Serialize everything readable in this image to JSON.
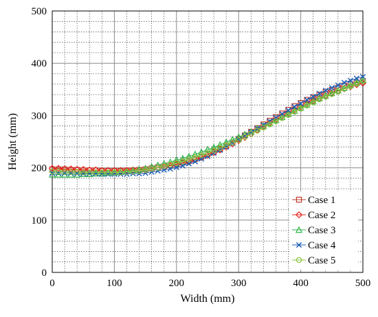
{
  "chart_data": {
    "type": "line",
    "title": "",
    "xlabel": "Width (mm)",
    "ylabel": "Height (mm)",
    "xlim": [
      0,
      500
    ],
    "ylim": [
      0,
      500
    ],
    "x_ticks": [
      "0",
      "100",
      "200",
      "300",
      "400",
      "500"
    ],
    "y_ticks": [
      "0",
      "100",
      "200",
      "300",
      "400",
      "500"
    ],
    "grid": true,
    "legend_position": "bottom-right",
    "series": [
      {
        "name": "Case 1",
        "color": "#c0392b",
        "marker": "square",
        "points": [
          [
            0,
            197
          ],
          [
            10,
            197
          ],
          [
            20,
            197
          ],
          [
            30,
            196
          ],
          [
            40,
            196
          ],
          [
            50,
            195
          ],
          [
            60,
            195
          ],
          [
            70,
            195
          ],
          [
            80,
            194
          ],
          [
            90,
            194
          ],
          [
            100,
            194
          ],
          [
            110,
            194
          ],
          [
            120,
            195
          ],
          [
            130,
            195
          ],
          [
            140,
            196
          ],
          [
            150,
            197
          ],
          [
            160,
            199
          ],
          [
            170,
            201
          ],
          [
            180,
            203
          ],
          [
            190,
            205
          ],
          [
            200,
            207
          ],
          [
            210,
            210
          ],
          [
            220,
            213
          ],
          [
            230,
            217
          ],
          [
            240,
            221
          ],
          [
            250,
            226
          ],
          [
            260,
            231
          ],
          [
            270,
            236
          ],
          [
            280,
            242
          ],
          [
            290,
            248
          ],
          [
            300,
            255
          ],
          [
            310,
            262
          ],
          [
            320,
            269
          ],
          [
            330,
            276
          ],
          [
            340,
            283
          ],
          [
            350,
            290
          ],
          [
            360,
            297
          ],
          [
            370,
            304
          ],
          [
            380,
            311
          ],
          [
            390,
            318
          ],
          [
            400,
            324
          ],
          [
            410,
            330
          ],
          [
            420,
            335
          ],
          [
            430,
            340
          ],
          [
            440,
            345
          ],
          [
            450,
            349
          ],
          [
            460,
            353
          ],
          [
            470,
            357
          ],
          [
            480,
            360
          ],
          [
            490,
            363
          ],
          [
            500,
            366
          ]
        ]
      },
      {
        "name": "Case 2",
        "color": "#e8231b",
        "marker": "diamond",
        "points": [
          [
            0,
            199
          ],
          [
            10,
            199
          ],
          [
            20,
            198
          ],
          [
            30,
            198
          ],
          [
            40,
            197
          ],
          [
            50,
            197
          ],
          [
            60,
            196
          ],
          [
            70,
            196
          ],
          [
            80,
            195
          ],
          [
            90,
            195
          ],
          [
            100,
            195
          ],
          [
            110,
            195
          ],
          [
            120,
            195
          ],
          [
            130,
            196
          ],
          [
            140,
            196
          ],
          [
            150,
            197
          ],
          [
            160,
            198
          ],
          [
            170,
            200
          ],
          [
            180,
            202
          ],
          [
            190,
            204
          ],
          [
            200,
            206
          ],
          [
            210,
            209
          ],
          [
            220,
            212
          ],
          [
            230,
            216
          ],
          [
            240,
            220
          ],
          [
            250,
            224
          ],
          [
            260,
            229
          ],
          [
            270,
            234
          ],
          [
            280,
            240
          ],
          [
            290,
            246
          ],
          [
            300,
            252
          ],
          [
            310,
            258
          ],
          [
            320,
            265
          ],
          [
            330,
            272
          ],
          [
            340,
            279
          ],
          [
            350,
            286
          ],
          [
            360,
            292
          ],
          [
            370,
            299
          ],
          [
            380,
            305
          ],
          [
            390,
            311
          ],
          [
            400,
            317
          ],
          [
            410,
            323
          ],
          [
            420,
            328
          ],
          [
            430,
            333
          ],
          [
            440,
            338
          ],
          [
            450,
            343
          ],
          [
            460,
            347
          ],
          [
            470,
            351
          ],
          [
            480,
            355
          ],
          [
            490,
            359
          ],
          [
            500,
            362
          ]
        ]
      },
      {
        "name": "Case 3",
        "color": "#2db34a",
        "marker": "triangle",
        "points": [
          [
            0,
            187
          ],
          [
            10,
            187
          ],
          [
            20,
            187
          ],
          [
            30,
            187
          ],
          [
            40,
            187
          ],
          [
            50,
            188
          ],
          [
            60,
            188
          ],
          [
            70,
            189
          ],
          [
            80,
            189
          ],
          [
            90,
            190
          ],
          [
            100,
            191
          ],
          [
            110,
            192
          ],
          [
            120,
            193
          ],
          [
            130,
            195
          ],
          [
            140,
            197
          ],
          [
            150,
            199
          ],
          [
            160,
            202
          ],
          [
            170,
            205
          ],
          [
            180,
            208
          ],
          [
            190,
            211
          ],
          [
            200,
            215
          ],
          [
            210,
            218
          ],
          [
            220,
            222
          ],
          [
            230,
            226
          ],
          [
            240,
            230
          ],
          [
            250,
            235
          ],
          [
            260,
            239
          ],
          [
            270,
            244
          ],
          [
            280,
            249
          ],
          [
            290,
            254
          ],
          [
            300,
            259
          ],
          [
            310,
            264
          ],
          [
            320,
            269
          ],
          [
            330,
            275
          ],
          [
            340,
            280
          ],
          [
            350,
            285
          ],
          [
            360,
            291
          ],
          [
            370,
            297
          ],
          [
            380,
            303
          ],
          [
            390,
            309
          ],
          [
            400,
            315
          ],
          [
            410,
            321
          ],
          [
            420,
            327
          ],
          [
            430,
            333
          ],
          [
            440,
            338
          ],
          [
            450,
            343
          ],
          [
            460,
            348
          ],
          [
            470,
            353
          ],
          [
            480,
            358
          ],
          [
            490,
            363
          ],
          [
            500,
            368
          ]
        ]
      },
      {
        "name": "Case 4",
        "color": "#1f5fb4",
        "marker": "x",
        "points": [
          [
            0,
            190
          ],
          [
            10,
            190
          ],
          [
            20,
            190
          ],
          [
            30,
            190
          ],
          [
            40,
            189
          ],
          [
            50,
            189
          ],
          [
            60,
            189
          ],
          [
            70,
            189
          ],
          [
            80,
            188
          ],
          [
            90,
            188
          ],
          [
            100,
            188
          ],
          [
            110,
            188
          ],
          [
            120,
            188
          ],
          [
            130,
            189
          ],
          [
            140,
            189
          ],
          [
            150,
            190
          ],
          [
            160,
            192
          ],
          [
            170,
            194
          ],
          [
            180,
            196
          ],
          [
            190,
            198
          ],
          [
            200,
            201
          ],
          [
            210,
            204
          ],
          [
            220,
            208
          ],
          [
            230,
            212
          ],
          [
            240,
            217
          ],
          [
            250,
            222
          ],
          [
            260,
            228
          ],
          [
            270,
            234
          ],
          [
            280,
            240
          ],
          [
            290,
            247
          ],
          [
            300,
            254
          ],
          [
            310,
            261
          ],
          [
            320,
            268
          ],
          [
            330,
            275
          ],
          [
            340,
            282
          ],
          [
            350,
            289
          ],
          [
            360,
            296
          ],
          [
            370,
            303
          ],
          [
            380,
            310
          ],
          [
            390,
            317
          ],
          [
            400,
            323
          ],
          [
            410,
            330
          ],
          [
            420,
            336
          ],
          [
            430,
            342
          ],
          [
            440,
            348
          ],
          [
            450,
            353
          ],
          [
            460,
            358
          ],
          [
            470,
            363
          ],
          [
            480,
            367
          ],
          [
            490,
            371
          ],
          [
            500,
            374
          ]
        ]
      },
      {
        "name": "Case 5",
        "color": "#8cc63f",
        "marker": "circle",
        "points": [
          [
            0,
            193
          ],
          [
            10,
            193
          ],
          [
            20,
            192
          ],
          [
            30,
            192
          ],
          [
            40,
            192
          ],
          [
            50,
            191
          ],
          [
            60,
            191
          ],
          [
            70,
            191
          ],
          [
            80,
            191
          ],
          [
            90,
            191
          ],
          [
            100,
            191
          ],
          [
            110,
            191
          ],
          [
            120,
            192
          ],
          [
            130,
            193
          ],
          [
            140,
            194
          ],
          [
            150,
            196
          ],
          [
            160,
            198
          ],
          [
            170,
            200
          ],
          [
            180,
            203
          ],
          [
            190,
            206
          ],
          [
            200,
            209
          ],
          [
            210,
            212
          ],
          [
            220,
            216
          ],
          [
            230,
            220
          ],
          [
            240,
            224
          ],
          [
            250,
            228
          ],
          [
            260,
            233
          ],
          [
            270,
            238
          ],
          [
            280,
            243
          ],
          [
            290,
            248
          ],
          [
            300,
            253
          ],
          [
            310,
            259
          ],
          [
            320,
            265
          ],
          [
            330,
            271
          ],
          [
            340,
            277
          ],
          [
            350,
            283
          ],
          [
            360,
            289
          ],
          [
            370,
            295
          ],
          [
            380,
            301
          ],
          [
            390,
            307
          ],
          [
            400,
            313
          ],
          [
            410,
            319
          ],
          [
            420,
            325
          ],
          [
            430,
            331
          ],
          [
            440,
            336
          ],
          [
            450,
            341
          ],
          [
            460,
            346
          ],
          [
            470,
            351
          ],
          [
            480,
            356
          ],
          [
            490,
            361
          ],
          [
            500,
            366
          ]
        ]
      }
    ]
  }
}
